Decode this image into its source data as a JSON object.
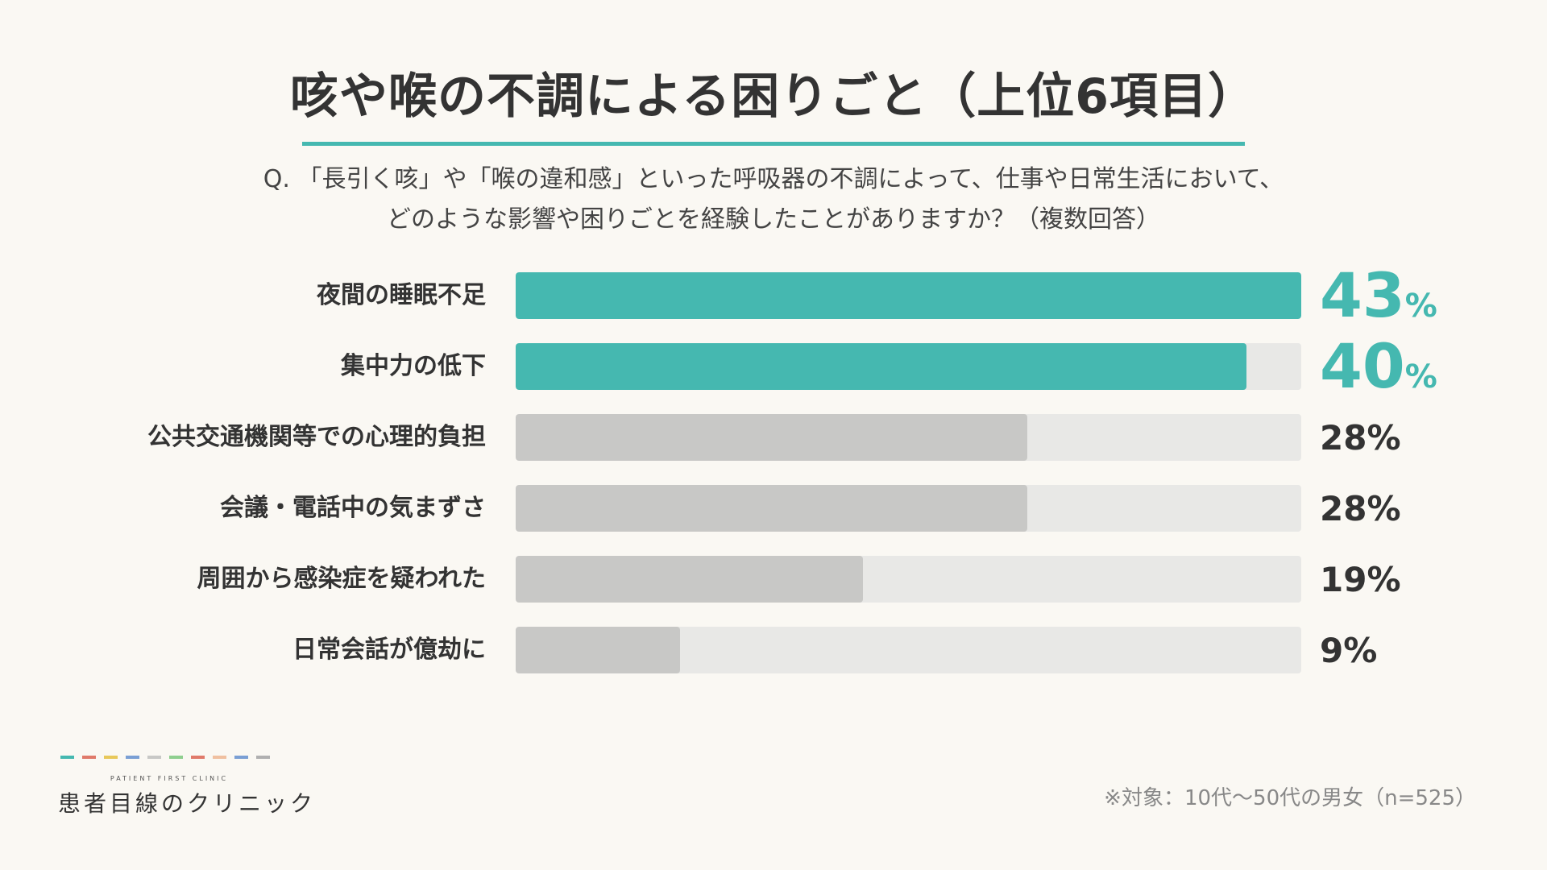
{
  "header": {
    "title": "咳や喉の不調による困りごと（上位6項目）",
    "question_line1": "Q. 「長引く咳」や「喉の違和感」といった呼吸器の不調によって、仕事や日常生活において、",
    "question_line2": "どのような影響や困りごとを経験したことがありますか？（複数回答）"
  },
  "colors": {
    "accent": "#45b8b0",
    "muted_bar": "#c8c8c6",
    "track": "#e8e8e6",
    "logo_dashes": [
      "#45b8b0",
      "#e07a6a",
      "#e8c85a",
      "#7a9fd4",
      "#c8c8c6",
      "#8fcf8f",
      "#e07a6a",
      "#f0c0a0",
      "#7a9fd4",
      "#b0b0b0"
    ]
  },
  "chart_data": {
    "type": "bar",
    "orientation": "horizontal",
    "categories": [
      "夜間の睡眠不足",
      "集中力の低下",
      "公共交通機関等での心理的負担",
      "会議・電話中の気まずさ",
      "周囲から感染症を疑われた",
      "日常会話が億劫に"
    ],
    "values": [
      43,
      40,
      28,
      28,
      19,
      9
    ],
    "value_labels": [
      "43",
      "40",
      "28%",
      "28%",
      "19%",
      "9%"
    ],
    "highlight": [
      true,
      true,
      false,
      false,
      false,
      false
    ],
    "unit": "%",
    "xlim": [
      0,
      43
    ]
  },
  "footer": {
    "logo_sub": "PATIENT FIRST CLINIC",
    "logo_main": "患者目線のクリニック",
    "note": "※対象：10代〜50代の男女（n=525）"
  }
}
